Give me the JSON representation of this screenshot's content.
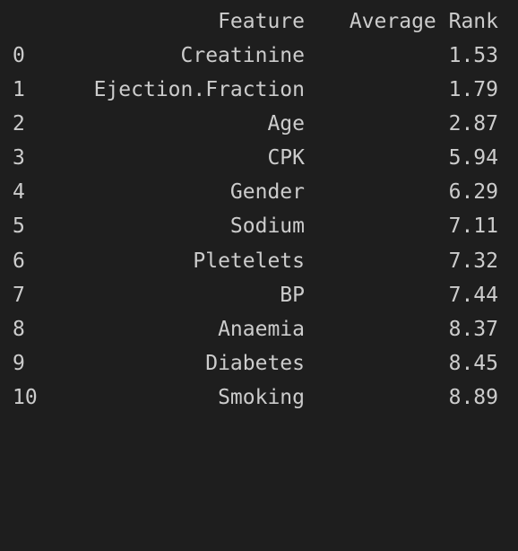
{
  "table": {
    "columns": [
      "Feature",
      "Average Rank"
    ],
    "rows": [
      {
        "index": "0",
        "feature": "Creatinine",
        "rank": "1.53"
      },
      {
        "index": "1",
        "feature": "Ejection.Fraction",
        "rank": "1.79"
      },
      {
        "index": "2",
        "feature": "Age",
        "rank": "2.87"
      },
      {
        "index": "3",
        "feature": "CPK",
        "rank": "5.94"
      },
      {
        "index": "4",
        "feature": "Gender",
        "rank": "6.29"
      },
      {
        "index": "5",
        "feature": "Sodium",
        "rank": "7.11"
      },
      {
        "index": "6",
        "feature": "Pletelets",
        "rank": "7.32"
      },
      {
        "index": "7",
        "feature": "BP",
        "rank": "7.44"
      },
      {
        "index": "8",
        "feature": "Anaemia",
        "rank": "8.37"
      },
      {
        "index": "9",
        "feature": "Diabetes",
        "rank": "8.45"
      },
      {
        "index": "10",
        "feature": "Smoking",
        "rank": "8.89"
      }
    ]
  },
  "colors": {
    "background": "#1e1e1e",
    "text": "#cccccc"
  }
}
